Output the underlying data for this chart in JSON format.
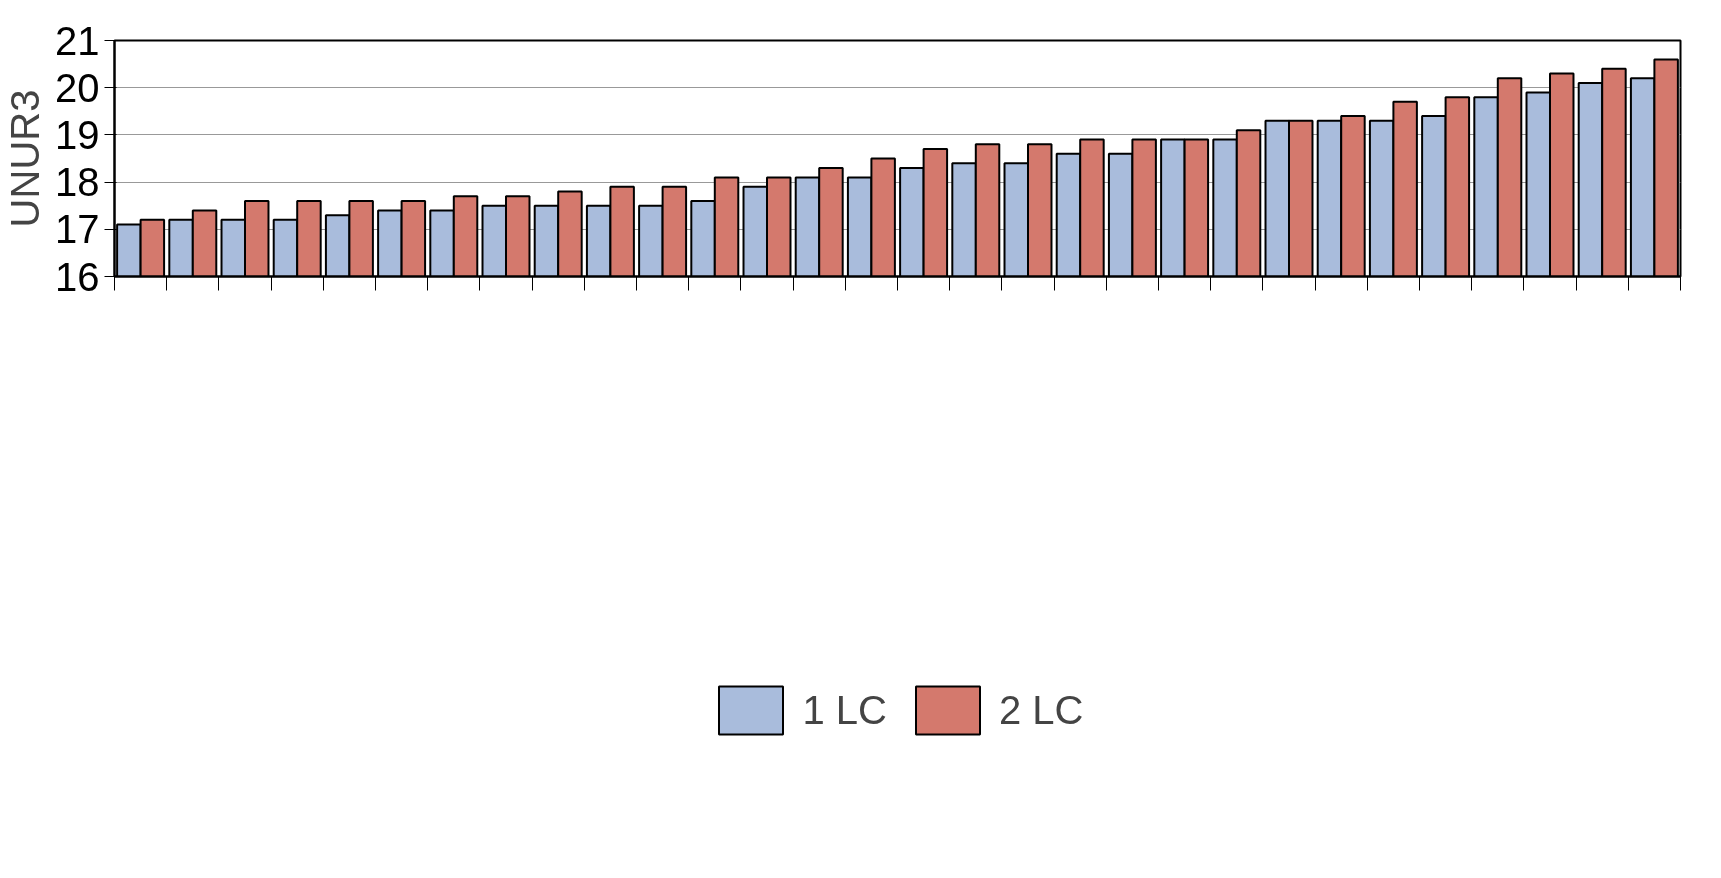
{
  "chart_data": {
    "type": "bar",
    "ylabel": "UNUR3",
    "categories": [
      null,
      null,
      null,
      null,
      null,
      null,
      null,
      null,
      null,
      null,
      null,
      null,
      null,
      null,
      null,
      null,
      null,
      null,
      null,
      null,
      null,
      null,
      null,
      null,
      null,
      null,
      null,
      null,
      null,
      null
    ],
    "series": [
      {
        "name": "1 LC",
        "color": "#a9bcdc",
        "values": [
          17.1,
          17.2,
          17.2,
          17.2,
          17.3,
          17.4,
          17.4,
          17.5,
          17.5,
          17.5,
          17.5,
          17.6,
          17.9,
          18.1,
          18.1,
          18.3,
          18.4,
          18.4,
          18.6,
          18.6,
          18.9,
          18.9,
          19.3,
          19.3,
          19.3,
          19.4,
          19.8,
          19.9,
          20.1,
          20.2
        ]
      },
      {
        "name": "2 LC",
        "color": "#d4796d",
        "values": [
          17.2,
          17.4,
          17.6,
          17.6,
          17.6,
          17.6,
          17.7,
          17.7,
          17.8,
          17.9,
          17.9,
          18.1,
          18.1,
          18.3,
          18.5,
          18.7,
          18.8,
          18.8,
          18.9,
          18.9,
          18.9,
          19.1,
          19.3,
          19.4,
          19.7,
          19.8,
          20.2,
          20.3,
          20.4,
          20.6
        ]
      }
    ],
    "ylim": [
      16,
      21
    ],
    "yticks": [
      16,
      17,
      18,
      19,
      20,
      21
    ],
    "grid": "y",
    "legend": "bottom",
    "tick_labels": "y"
  }
}
